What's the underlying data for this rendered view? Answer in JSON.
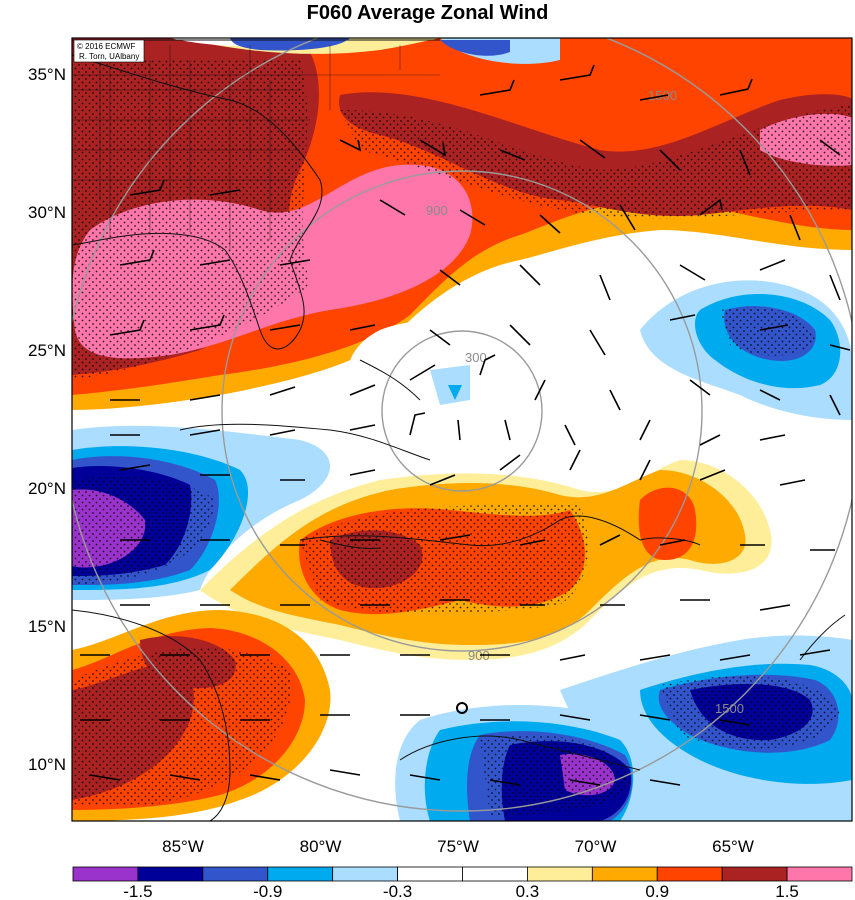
{
  "title": "F060 Average Zonal Wind",
  "credit": [
    "© 2016 ECMWF",
    "R. Torn, UAlbany"
  ],
  "lat_labels": [
    {
      "text": "35°N",
      "lat": 35
    },
    {
      "text": "30°N",
      "lat": 30
    },
    {
      "text": "25°N",
      "lat": 25
    },
    {
      "text": "20°N",
      "lat": 20
    },
    {
      "text": "15°N",
      "lat": 15
    },
    {
      "text": "10°N",
      "lat": 10
    }
  ],
  "lon_labels": [
    {
      "text": "85°W",
      "lon": -85
    },
    {
      "text": "80°W",
      "lon": -80
    },
    {
      "text": "75°W",
      "lon": -75
    },
    {
      "text": "70°W",
      "lon": -70
    },
    {
      "text": "65°W",
      "lon": -65
    }
  ],
  "range_rings": {
    "center": {
      "lon": -75.3,
      "lat": 22.0
    },
    "radii_km": [
      300,
      900,
      1500
    ],
    "labels": [
      "300",
      "900",
      "1500"
    ]
  },
  "colorbar": {
    "colors": [
      "#9933cc",
      "#000099",
      "#3355cc",
      "#00aaee",
      "#aaddff",
      "#ffffff",
      "#ffffff",
      "#ffee99",
      "#ffaa00",
      "#ff4400",
      "#aa2222",
      "#ff77aa"
    ],
    "tick_labels": [
      "-1.5",
      "-0.9",
      "-0.3",
      "0.3",
      "0.9",
      "1.5"
    ]
  },
  "legend_colors": {
    "purple": "#9933cc",
    "navy": "#000099",
    "blue": "#3355cc",
    "cyan": "#00aaee",
    "light_blue": "#aaddff",
    "light_yellow": "#ffee99",
    "orange": "#ffaa00",
    "red_orange": "#ff4400",
    "dark_red": "#aa2222",
    "pink": "#ff77aa"
  }
}
